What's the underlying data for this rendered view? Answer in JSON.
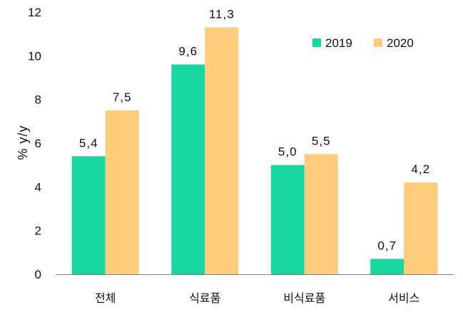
{
  "chart_data": {
    "type": "bar",
    "categories": [
      "전체",
      "식료품",
      "비식료품",
      "서비스"
    ],
    "series": [
      {
        "name": "2019",
        "values": [
          5.4,
          9.6,
          5.0,
          0.7
        ],
        "labels": [
          "5,4",
          "9,6",
          "5,0",
          "0,7"
        ],
        "color": "#17d6a0"
      },
      {
        "name": "2020",
        "values": [
          7.5,
          11.3,
          5.5,
          4.2
        ],
        "labels": [
          "7,5",
          "11,3",
          "5,5",
          "4,2"
        ],
        "color": "#fdcc7a"
      }
    ],
    "ylabel": "% y/y",
    "ylim": [
      0,
      12
    ],
    "yticks": [
      0,
      2,
      4,
      6,
      8,
      10,
      12
    ],
    "grid": false,
    "legend_position": "top-right"
  }
}
